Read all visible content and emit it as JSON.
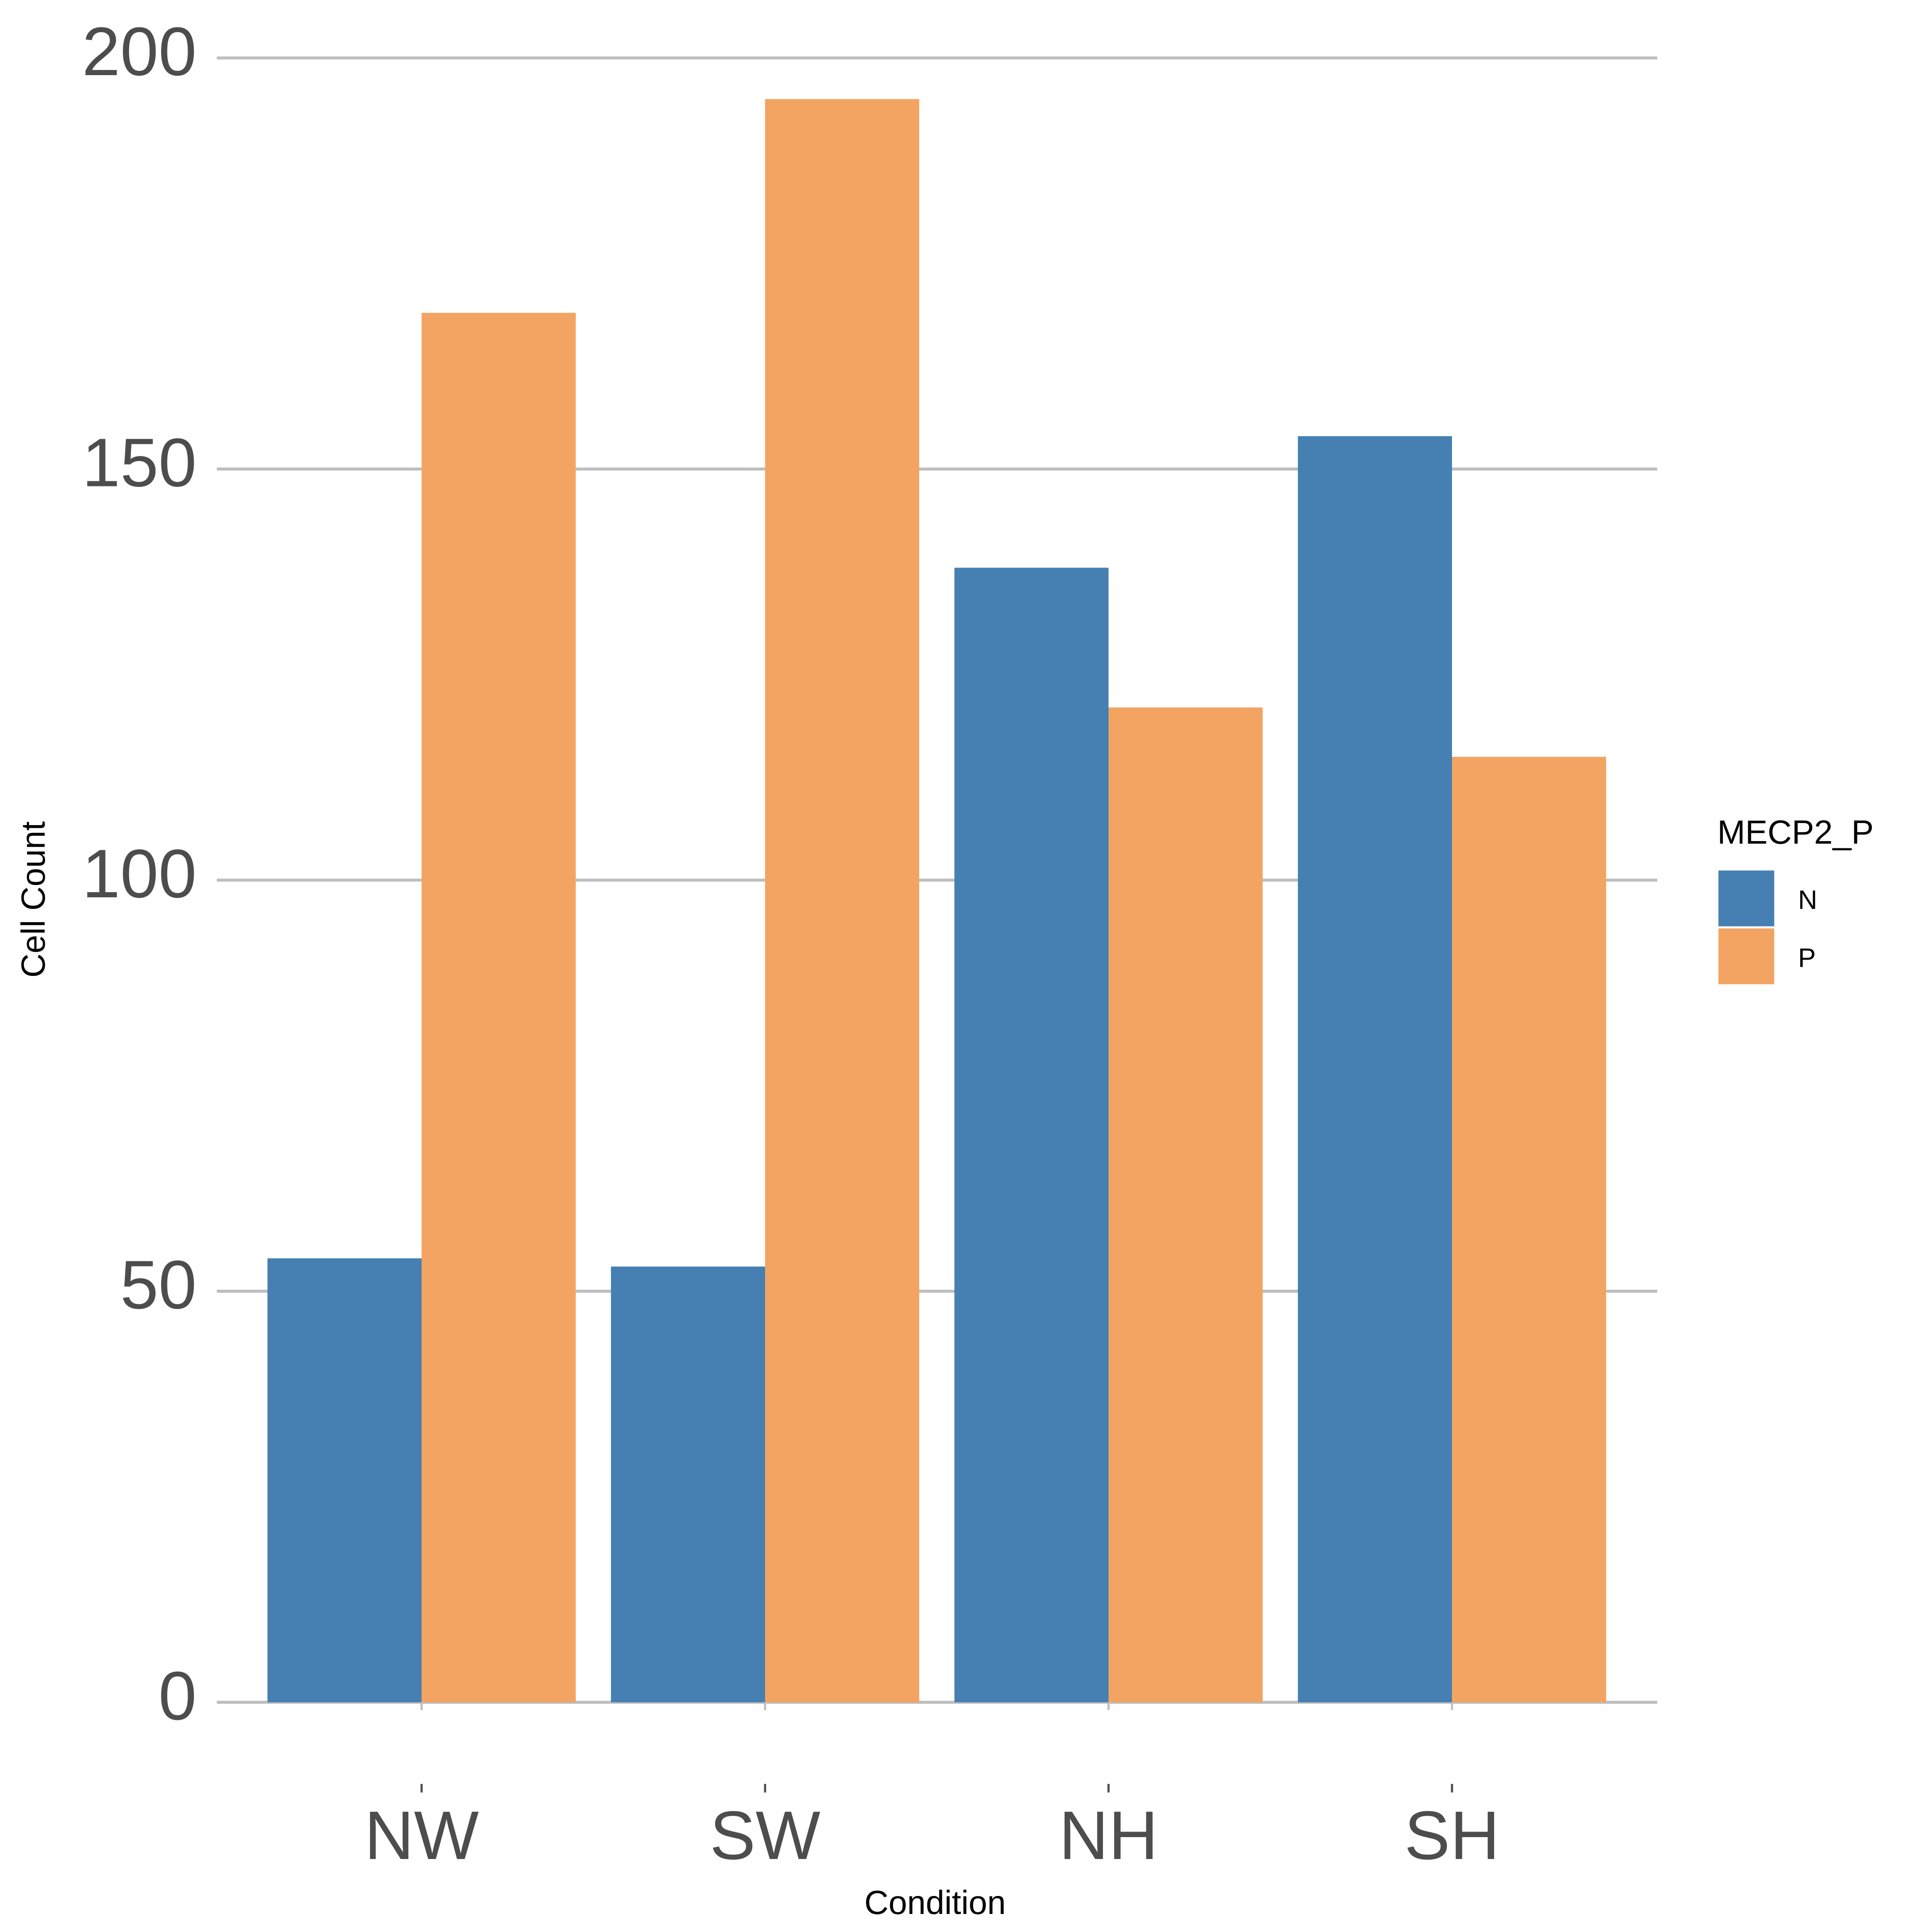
{
  "chart_data": {
    "type": "bar",
    "title": "",
    "xlabel": "Condition",
    "ylabel": "Cell Count",
    "categories": [
      "NW",
      "SW",
      "NH",
      "SH"
    ],
    "series": [
      {
        "name": "N",
        "color": "#4680B2",
        "values": [
          54,
          53,
          138,
          154
        ]
      },
      {
        "name": "P",
        "color": "#F3A462",
        "values": [
          169,
          195,
          121,
          115
        ]
      }
    ],
    "ylim": [
      0,
      200
    ],
    "yticks": [
      0,
      50,
      100,
      150,
      200
    ],
    "ytick_labels": [
      "0",
      "50",
      "100",
      "150",
      "200"
    ],
    "grid": true,
    "legend": {
      "title": "MECP2_P",
      "placement": "right",
      "entries": [
        "N",
        "P"
      ]
    }
  }
}
